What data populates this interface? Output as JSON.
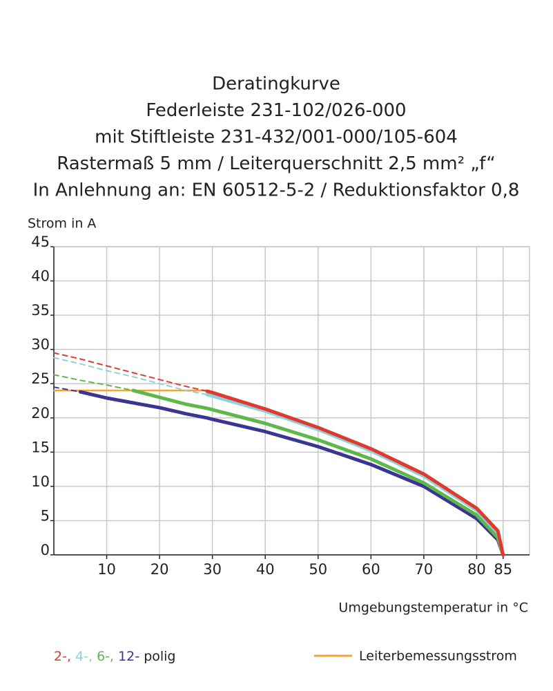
{
  "chart_data": {
    "type": "line",
    "title": [
      "Deratingkurve",
      "Federleiste 231-102/026-000",
      "mit Stiftleiste 231-432/001-000/105-604",
      "Rastermaß 5 mm / Leiterquerschnitt 2,5 mm² „f“",
      "In Anlehnung an: EN 60512-5-2 / Reduktionsfaktor 0,8"
    ],
    "y_label": "Strom in A",
    "x_label": "Umgebungstemperatur in °C",
    "x": [
      0,
      5,
      10,
      15,
      20,
      25,
      29,
      30,
      40,
      50,
      60,
      70,
      80,
      84,
      85
    ],
    "xlim": [
      0,
      90
    ],
    "xticks": [
      10,
      20,
      30,
      40,
      50,
      60,
      70,
      80,
      85
    ],
    "ylim": [
      0,
      45
    ],
    "yticks": [
      0,
      5,
      10,
      15,
      20,
      25,
      30,
      35,
      40,
      45
    ],
    "grid": true,
    "series": [
      {
        "name": "2-,",
        "color": "#e03a2f",
        "dashed_values": [
          29.5,
          28.6,
          27.6,
          26.6,
          25.6,
          24.6,
          23.9,
          null,
          null,
          null,
          null,
          null,
          null,
          null,
          null
        ],
        "values": [
          null,
          null,
          null,
          null,
          null,
          null,
          23.9,
          23.7,
          21.3,
          18.6,
          15.5,
          11.8,
          6.8,
          3.5,
          0
        ]
      },
      {
        "name": "4-,",
        "color": "#8ed0dc",
        "dashed_values": [
          28.8,
          27.9,
          26.9,
          26,
          25,
          24,
          23.4,
          null,
          null,
          null,
          null,
          null,
          null,
          null,
          null
        ],
        "values": [
          null,
          null,
          null,
          null,
          null,
          null,
          23.4,
          23.2,
          21,
          18.3,
          15.2,
          11.5,
          6.5,
          3.2,
          0
        ]
      },
      {
        "name": "6-,",
        "color": "#5cb848",
        "dashed_values": [
          26.3,
          25.5,
          24.8,
          24,
          null,
          null,
          null,
          null,
          null,
          null,
          null,
          null,
          null,
          null,
          null
        ],
        "values": [
          null,
          null,
          null,
          24,
          23,
          22,
          21.4,
          21.2,
          19.2,
          16.8,
          14,
          10.5,
          5.8,
          2.5,
          0
        ]
      },
      {
        "name": "12-",
        "color": "#3a3592",
        "dashed_values": [
          24.5,
          23.8,
          null,
          null,
          null,
          null,
          null,
          null,
          null,
          null,
          null,
          null,
          null,
          null,
          null
        ],
        "values": [
          null,
          23.8,
          22.9,
          22.2,
          21.5,
          20.6,
          20,
          19.8,
          18,
          15.8,
          13.2,
          10,
          5.3,
          2.2,
          0
        ]
      }
    ],
    "legend_suffix": "polig",
    "rated_current": {
      "name": "Leiterbemessungsstrom",
      "color": "#f3a33a",
      "values": [
        24,
        24,
        24,
        24,
        24,
        24,
        24,
        null,
        null,
        null,
        null,
        null,
        null,
        null,
        null
      ]
    }
  }
}
